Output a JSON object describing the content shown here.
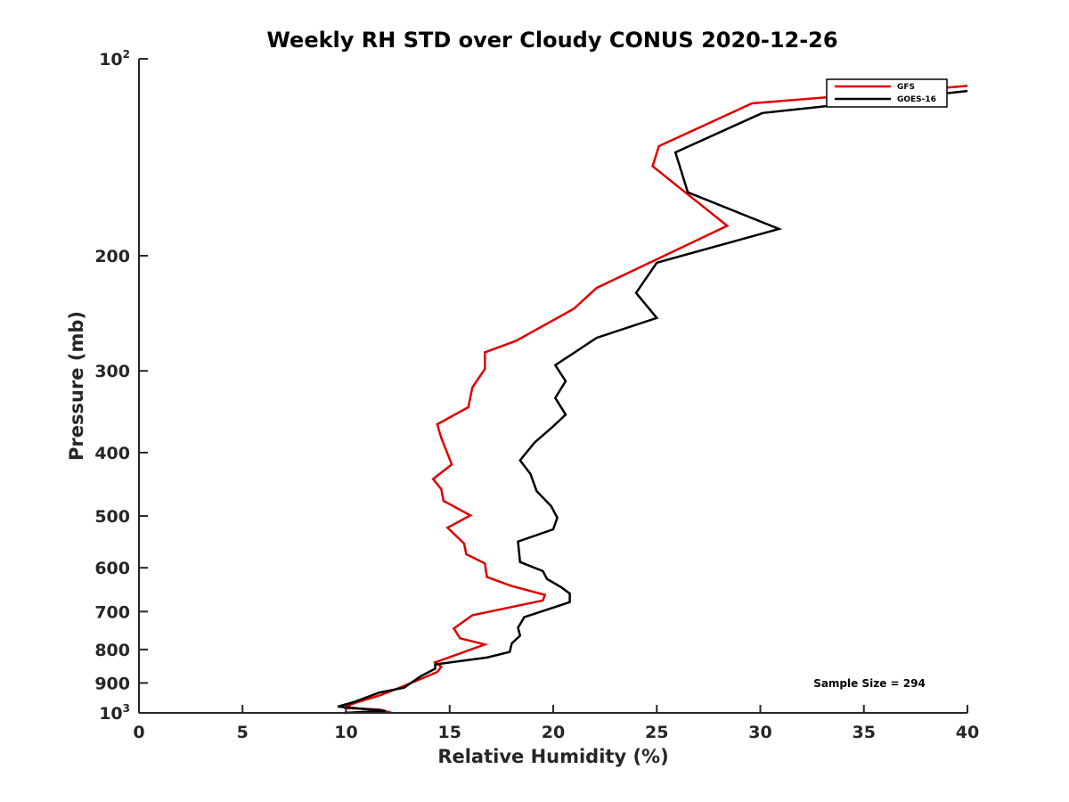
{
  "chart_data": {
    "type": "line",
    "title": "Weekly RH STD over Cloudy CONUS 2020-12-26",
    "xlabel": "Relative Humidity (%)",
    "ylabel": "Pressure (mb)",
    "xlim": [
      0,
      40
    ],
    "ylim": [
      100,
      1000
    ],
    "y_scale": "log",
    "y_reversed": true,
    "x_ticks": [
      "0",
      "5",
      "10",
      "15",
      "20",
      "25",
      "30",
      "35",
      "40"
    ],
    "y_ticks": [
      {
        "value": 100,
        "base": "10",
        "exp": "2"
      },
      {
        "value": 200,
        "label": "200"
      },
      {
        "value": 300,
        "label": "300"
      },
      {
        "value": 400,
        "label": "400"
      },
      {
        "value": 500,
        "label": "500"
      },
      {
        "value": 600,
        "label": "600"
      },
      {
        "value": 700,
        "label": "700"
      },
      {
        "value": 800,
        "label": "800"
      },
      {
        "value": 900,
        "label": "900"
      },
      {
        "value": 1000,
        "base": "10",
        "exp": "3"
      }
    ],
    "grid": false,
    "legend_position": "top-right",
    "annotation": "Sample Size = 294",
    "series": [
      {
        "name": "GFS",
        "color": "#e00000",
        "points": [
          [
            40.0,
            110
          ],
          [
            29.6,
            117
          ],
          [
            25.1,
            136
          ],
          [
            24.8,
            146
          ],
          [
            28.4,
            180
          ],
          [
            22.1,
            224
          ],
          [
            21.0,
            241
          ],
          [
            18.2,
            270
          ],
          [
            16.7,
            281
          ],
          [
            16.7,
            298
          ],
          [
            16.1,
            318
          ],
          [
            15.9,
            341
          ],
          [
            14.4,
            362
          ],
          [
            14.6,
            380
          ],
          [
            15.1,
            417
          ],
          [
            14.2,
            439
          ],
          [
            14.6,
            455
          ],
          [
            14.7,
            474
          ],
          [
            16.0,
            499
          ],
          [
            14.9,
            521
          ],
          [
            15.7,
            551
          ],
          [
            15.8,
            572
          ],
          [
            16.7,
            591
          ],
          [
            16.8,
            620
          ],
          [
            18.0,
            640
          ],
          [
            19.6,
            660
          ],
          [
            19.5,
            673
          ],
          [
            16.1,
            709
          ],
          [
            15.2,
            743
          ],
          [
            15.5,
            769
          ],
          [
            16.7,
            786
          ],
          [
            14.3,
            837
          ],
          [
            14.6,
            850
          ],
          [
            14.4,
            866
          ],
          [
            12.6,
            915
          ],
          [
            11.6,
            941
          ],
          [
            10.4,
            966
          ],
          [
            9.9,
            983
          ],
          [
            11.6,
            988
          ],
          [
            12.2,
            1000
          ]
        ]
      },
      {
        "name": "GOES-16",
        "color": "#000000",
        "points": [
          [
            40.0,
            112
          ],
          [
            30.1,
            121
          ],
          [
            25.9,
            139
          ],
          [
            26.5,
            160
          ],
          [
            30.9,
            182
          ],
          [
            25.0,
            205
          ],
          [
            24.0,
            228
          ],
          [
            25.0,
            249
          ],
          [
            22.1,
            267
          ],
          [
            20.1,
            294
          ],
          [
            20.6,
            311
          ],
          [
            20.1,
            330
          ],
          [
            20.6,
            350
          ],
          [
            19.9,
            367
          ],
          [
            19.1,
            386
          ],
          [
            18.4,
            411
          ],
          [
            18.9,
            431
          ],
          [
            19.2,
            458
          ],
          [
            19.9,
            483
          ],
          [
            20.2,
            503
          ],
          [
            20.0,
            524
          ],
          [
            18.3,
            547
          ],
          [
            18.4,
            588
          ],
          [
            19.5,
            607
          ],
          [
            19.7,
            624
          ],
          [
            20.4,
            643
          ],
          [
            20.8,
            657
          ],
          [
            20.8,
            677
          ],
          [
            18.6,
            714
          ],
          [
            18.3,
            741
          ],
          [
            18.4,
            762
          ],
          [
            18.0,
            783
          ],
          [
            17.9,
            807
          ],
          [
            16.8,
            823
          ],
          [
            14.3,
            843
          ],
          [
            14.3,
            856
          ],
          [
            13.6,
            879
          ],
          [
            12.8,
            915
          ],
          [
            11.6,
            931
          ],
          [
            10.4,
            962
          ],
          [
            9.6,
            978
          ],
          [
            11.9,
            993
          ],
          [
            9.9,
            1000
          ]
        ]
      }
    ]
  }
}
